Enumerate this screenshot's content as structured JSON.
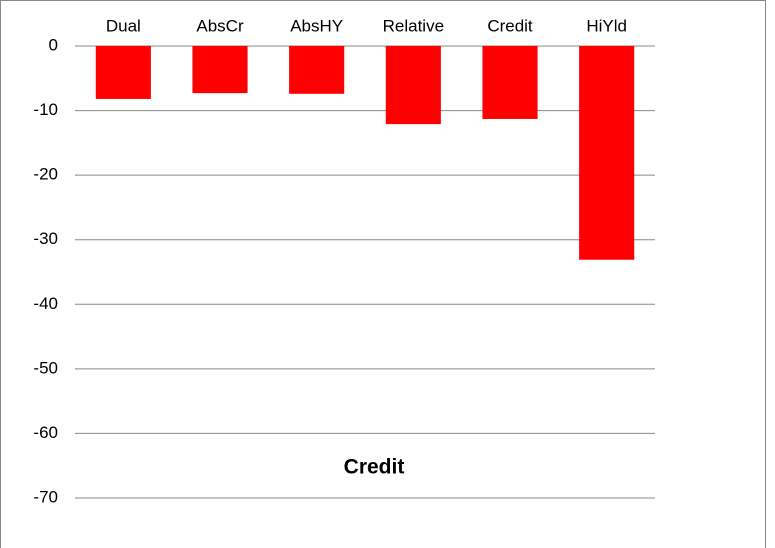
{
  "chart_data": {
    "type": "bar",
    "title": "Credit",
    "categories": [
      "Dual",
      "AbsCr",
      "AbsHY",
      "Relative",
      "Credit",
      "HiYld"
    ],
    "values": [
      -8.2,
      -7.3,
      -7.4,
      -12.1,
      -11.3,
      -33.1
    ],
    "color": "#ff0000",
    "ylim": [
      -70,
      0
    ],
    "yticks": [
      0,
      -10,
      -20,
      -30,
      -40,
      -50,
      -60,
      -70
    ],
    "grid": true
  }
}
